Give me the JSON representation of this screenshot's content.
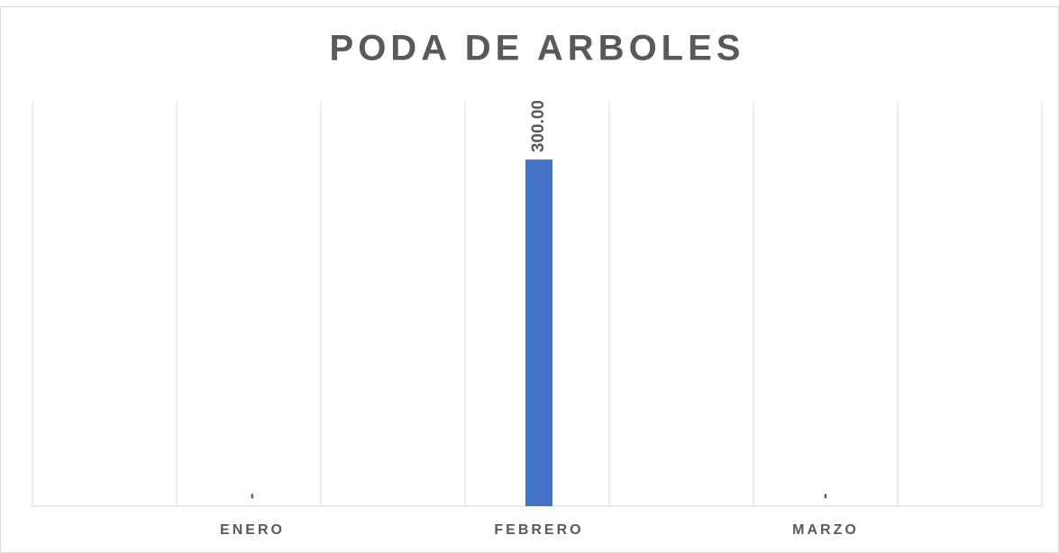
{
  "chart_data": {
    "type": "bar",
    "title": "PODA DE ARBOLES",
    "categories": [
      "ENERO",
      "FEBRERO",
      "MARZO"
    ],
    "values": [
      0,
      300,
      0
    ],
    "value_labels": [
      "-",
      "300.00",
      "-"
    ],
    "color": "#4472c4",
    "ylim": [
      0,
      350
    ]
  }
}
